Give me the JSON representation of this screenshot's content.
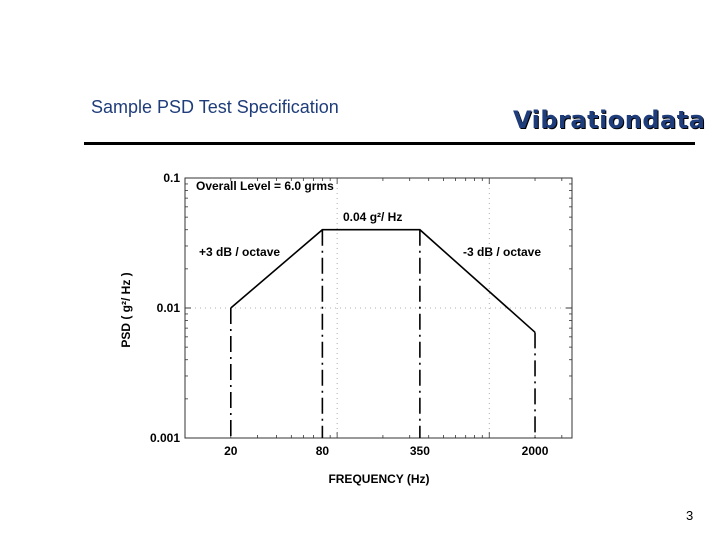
{
  "slide": {
    "title": "Sample PSD Test Specification",
    "brand": "Vibrationdata",
    "page_number": "3"
  },
  "chart_data": {
    "type": "line",
    "x": [
      20,
      80,
      350,
      2000
    ],
    "series": [
      {
        "values": [
          0.01,
          0.04,
          0.04,
          0.0065
        ]
      }
    ],
    "xlabel": "FREQUENCY (Hz)",
    "ylabel": "PSD ( g²/ Hz )",
    "x_tick_labels": [
      "20",
      "80",
      "350",
      "2000"
    ],
    "y_tick_labels": [
      "0.1",
      "0.01",
      "0.001"
    ],
    "yscale": "log",
    "xscale": "log",
    "ylim": [
      0.001,
      0.1
    ],
    "xlim": [
      10,
      3500
    ],
    "annotations": {
      "overall": "Overall Level = 6.0 grms",
      "plateau": "0.04 g²/ Hz",
      "left_slope": "+3 dB / octave",
      "right_slope": "-3 dB / octave"
    },
    "colors": {
      "line": "#000000"
    }
  }
}
